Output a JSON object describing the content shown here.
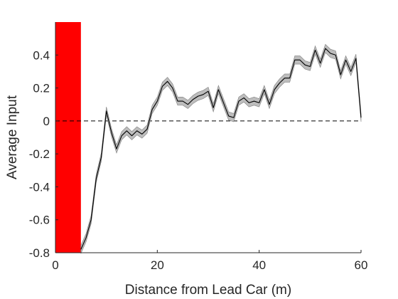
{
  "chart_data": {
    "type": "line",
    "title": "",
    "xlabel": "Distance from Lead Car (m)",
    "ylabel": "Average Input",
    "xlim": [
      0,
      60
    ],
    "ylim": [
      -0.8,
      0.6
    ],
    "xticks": [
      0,
      20,
      40,
      60
    ],
    "xtick_labels": [
      "0",
      "20",
      "40",
      "60"
    ],
    "yticks": [
      -0.8,
      -0.6,
      -0.4,
      -0.2,
      0,
      0.2,
      0.4
    ],
    "ytick_labels": [
      "-0.8",
      "-0.6",
      "-0.4",
      "-0.2",
      "0",
      "0.2",
      "0.4"
    ],
    "grid": false,
    "legend": "none",
    "reference_line": {
      "y": 0,
      "style": "dashed",
      "color": "#000000"
    },
    "shaded_region": {
      "x_from": 0,
      "x_to": 5,
      "color": "#ff0000"
    },
    "series": [
      {
        "color": "#000000",
        "band_color": "#bdbdbd",
        "x": [
          5,
          6,
          7,
          8,
          9,
          10,
          11,
          12,
          13,
          14,
          15,
          16,
          17,
          18,
          19,
          20,
          21,
          22,
          23,
          24,
          25,
          26,
          27,
          28,
          29,
          30,
          31,
          32,
          33,
          34,
          35,
          36,
          37,
          38,
          39,
          40,
          41,
          42,
          43,
          44,
          45,
          46,
          47,
          48,
          49,
          50,
          51,
          52,
          53,
          54,
          55,
          56,
          57,
          58,
          59,
          60
        ],
        "y": [
          -0.78,
          -0.71,
          -0.6,
          -0.35,
          -0.22,
          0.06,
          -0.07,
          -0.17,
          -0.09,
          -0.06,
          -0.09,
          -0.06,
          -0.08,
          -0.05,
          0.07,
          0.12,
          0.21,
          0.24,
          0.2,
          0.12,
          0.12,
          0.1,
          0.13,
          0.15,
          0.16,
          0.18,
          0.08,
          0.19,
          0.11,
          0.03,
          0.02,
          0.12,
          0.14,
          0.11,
          0.12,
          0.11,
          0.19,
          0.1,
          0.19,
          0.23,
          0.26,
          0.26,
          0.37,
          0.37,
          0.34,
          0.33,
          0.43,
          0.35,
          0.44,
          0.41,
          0.4,
          0.28,
          0.37,
          0.3,
          0.38,
          0.02
        ],
        "band_half_width": 0.025
      }
    ]
  }
}
